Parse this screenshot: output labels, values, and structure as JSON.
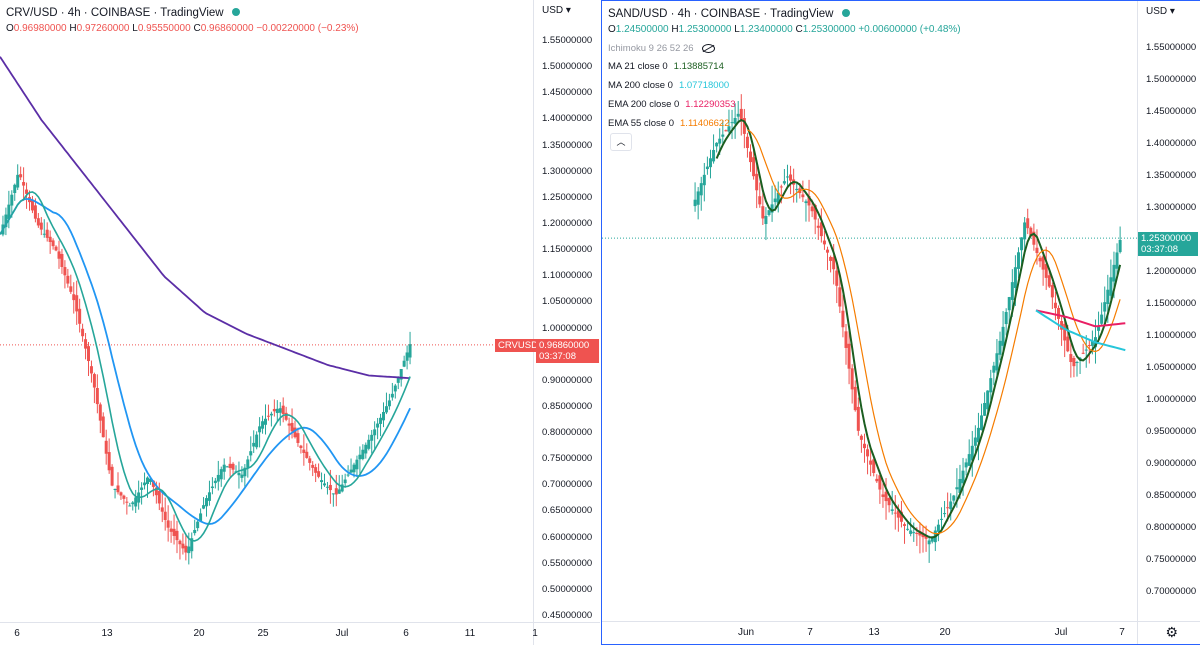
{
  "left_chart": {
    "symbol": "CRV/USD",
    "interval": "4h",
    "exchange": "COINBASE",
    "source": "TradingView",
    "ohlc": {
      "o_label": "O",
      "o": "0.96980000",
      "h_label": "H",
      "h": "0.97260000",
      "l_label": "L",
      "l": "0.95550000",
      "c_label": "C",
      "c": "0.96860000",
      "change": "−0.00220000 (−0.23%)"
    },
    "currency": "USD",
    "price_ticks": [
      "1.55000000",
      "1.50000000",
      "1.45000000",
      "1.40000000",
      "1.35000000",
      "1.30000000",
      "1.25000000",
      "1.20000000",
      "1.15000000",
      "1.10000000",
      "1.05000000",
      "1.00000000",
      "0.95000000",
      "0.90000000",
      "0.85000000",
      "0.80000000",
      "0.75000000",
      "0.70000000",
      "0.65000000",
      "0.60000000",
      "0.55000000",
      "0.50000000",
      "0.45000000"
    ],
    "time_ticks": [
      "6",
      "13",
      "20",
      "25",
      "Jul",
      "6",
      "11",
      "1"
    ],
    "last_price_tag": {
      "symbol": "CRVUSD",
      "price": "0.96860000",
      "countdown": "03:37:08"
    }
  },
  "right_chart": {
    "symbol": "SAND/USD",
    "interval": "4h",
    "exchange": "COINBASE",
    "source": "TradingView",
    "ohlc": {
      "o_label": "O",
      "o": "1.24500000",
      "h_label": "H",
      "h": "1.25300000",
      "l_label": "L",
      "l": "1.23400000",
      "c_label": "C",
      "c": "1.25300000",
      "change": "+0.00600000 (+0.48%)"
    },
    "ichimoku": "Ichimoku 9 26 52 26",
    "indicators": [
      {
        "label": "MA 21 close 0",
        "value": "1.13885714",
        "color": "#1b5e20"
      },
      {
        "label": "MA 200 close 0",
        "value": "1.07718000",
        "color": "#26c6da"
      },
      {
        "label": "EMA 200 close 0",
        "value": "1.12290353",
        "color": "#e91e63"
      },
      {
        "label": "EMA 55 close 0",
        "value": "1.11406622",
        "color": "#f57c00"
      }
    ],
    "collapse_icon": "chevron-up-icon",
    "currency": "USD",
    "price_ticks": [
      "1.55000000",
      "1.50000000",
      "1.45000000",
      "1.40000000",
      "1.35000000",
      "1.30000000",
      "1.25000000",
      "1.20000000",
      "1.15000000",
      "1.10000000",
      "1.05000000",
      "1.00000000",
      "0.95000000",
      "0.90000000",
      "0.85000000",
      "0.80000000",
      "0.75000000",
      "0.70000000"
    ],
    "time_ticks": [
      "Jun",
      "7",
      "13",
      "20",
      "Jul",
      "7"
    ],
    "last_price_tag": {
      "price": "1.25300000",
      "countdown": "03:37:08"
    }
  },
  "colors": {
    "up": "#26a69a",
    "down": "#ef5350",
    "ma_purple": "#5b2ea6",
    "ma_blue": "#2196f3",
    "ma_teal": "#26a69a",
    "ma21": "#1b5e20",
    "ma200": "#26c6da",
    "ema200": "#e91e63",
    "ema55": "#f57c00",
    "accent": "#2962ff"
  }
}
